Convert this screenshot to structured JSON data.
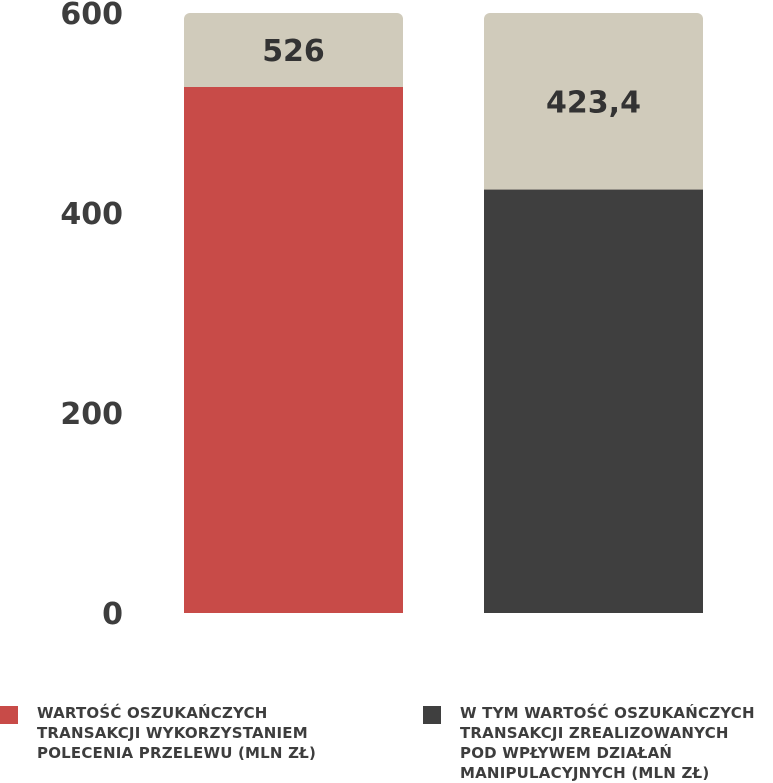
{
  "chart_data": {
    "type": "bar",
    "categories": [
      "",
      ""
    ],
    "ylim": [
      0,
      600
    ],
    "yticks": [
      "0",
      "200",
      "400",
      "600"
    ],
    "series": [
      {
        "name": "WARTOŚĆ OSZUKAŃCZYCH TRANSAKCJI WYKORZYSTANIEM POLECENIA PRZELEWU (MLN ZŁ)",
        "values": [
          526,
          423.4
        ],
        "labels": [
          "526",
          "423,4"
        ],
        "colors": [
          "#c84b48",
          "#3f3f3f"
        ]
      }
    ],
    "background_track_color": "#d0cbbb",
    "grid": false,
    "legend_position": "bottom",
    "legend": [
      {
        "lines": [
          "WARTOŚĆ OSZUKAŃCZYCH",
          "TRANSAKCJI WYKORZYSTANIEM",
          "POLECENIA PRZELEWU (MLN ZŁ)"
        ],
        "color": "#c84b48"
      },
      {
        "lines": [
          "W TYM WARTOŚĆ OSZUKAŃCZYCH",
          "TRANSAKCJI ZREALIZOWANYCH",
          "POD WPŁYWEM DZIAŁAŃ",
          "MANIPULACYJNYCH (MLN ZŁ)"
        ],
        "color": "#3f3f3f"
      }
    ]
  }
}
